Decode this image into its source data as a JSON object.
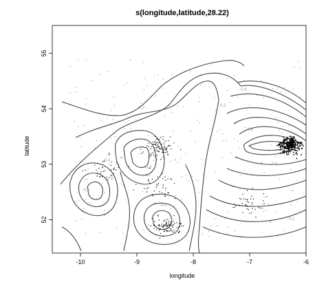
{
  "chart_data": {
    "type": "contour",
    "title": "s(longitude,latitude,28.22)",
    "xlabel": "longitude",
    "ylabel": "latitude",
    "xlim": [
      -10.5,
      -6.0
    ],
    "ylim": [
      51.4,
      55.5
    ],
    "x_ticks": [
      -10,
      -9,
      -8,
      -7,
      -6
    ],
    "y_ticks": [
      52,
      53,
      54,
      55
    ],
    "grid": false,
    "legend": "none",
    "contour_color": "#444444",
    "point_color": "#000000",
    "contour_centers": [
      {
        "lon": -6.9,
        "lat": 53.3,
        "sign": "+"
      },
      {
        "lon": -8.8,
        "lat": 53.4,
        "sign": "-"
      },
      {
        "lon": -9.7,
        "lat": 52.5,
        "sign": "-"
      },
      {
        "lon": -8.6,
        "lat": 52.0,
        "sign": "-"
      }
    ],
    "point_clusters": [
      {
        "lon": -6.3,
        "lat": 53.35,
        "density": "dense"
      },
      {
        "lon": -8.6,
        "lat": 53.3,
        "density": "medium"
      },
      {
        "lon": -8.5,
        "lat": 51.9,
        "density": "medium"
      },
      {
        "lon": -8.7,
        "lat": 52.65,
        "density": "low"
      },
      {
        "lon": -7.0,
        "lat": 52.3,
        "density": "low"
      },
      {
        "lon": -9.5,
        "lat": 52.9,
        "density": "low"
      }
    ]
  }
}
